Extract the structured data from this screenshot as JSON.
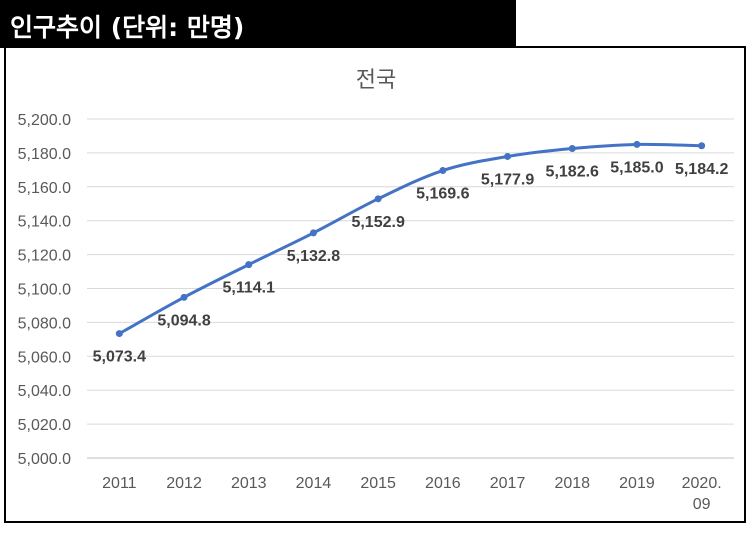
{
  "header": {
    "title": "인구추이 (단위: 만명)"
  },
  "chart_data": {
    "type": "line",
    "title": "전국",
    "xlabel": "",
    "ylabel": "",
    "categories": [
      "2011",
      "2012",
      "2013",
      "2014",
      "2015",
      "2016",
      "2017",
      "2018",
      "2019",
      "2020.09"
    ],
    "category_display": [
      [
        "2011"
      ],
      [
        "2012"
      ],
      [
        "2013"
      ],
      [
        "2014"
      ],
      [
        "2015"
      ],
      [
        "2016"
      ],
      [
        "2017"
      ],
      [
        "2018"
      ],
      [
        "2019"
      ],
      [
        "2020.",
        "09"
      ]
    ],
    "series": [
      {
        "name": "전국",
        "values": [
          5073.4,
          5094.8,
          5114.1,
          5132.8,
          5152.9,
          5169.6,
          5177.9,
          5182.6,
          5185.0,
          5184.2
        ]
      }
    ],
    "data_labels": [
      "5,073.4",
      "5,094.8",
      "5,114.1",
      "5,132.8",
      "5,152.9",
      "5,169.6",
      "5,177.9",
      "5,182.6",
      "5,185.0",
      "5,184.2"
    ],
    "y_ticks": [
      5000,
      5020,
      5040,
      5060,
      5080,
      5100,
      5120,
      5140,
      5160,
      5180,
      5200
    ],
    "y_tick_labels": [
      "5,000.0",
      "5,020.0",
      "5,040.0",
      "5,060.0",
      "5,080.0",
      "5,100.0",
      "5,120.0",
      "5,140.0",
      "5,160.0",
      "5,180.0",
      "5,200.0"
    ],
    "ylim": [
      5000,
      5200
    ],
    "grid": true,
    "legend": "none",
    "colors": {
      "line": "#4472C4",
      "grid": "#D9D9D9",
      "axis": "#BFBFBF"
    }
  }
}
